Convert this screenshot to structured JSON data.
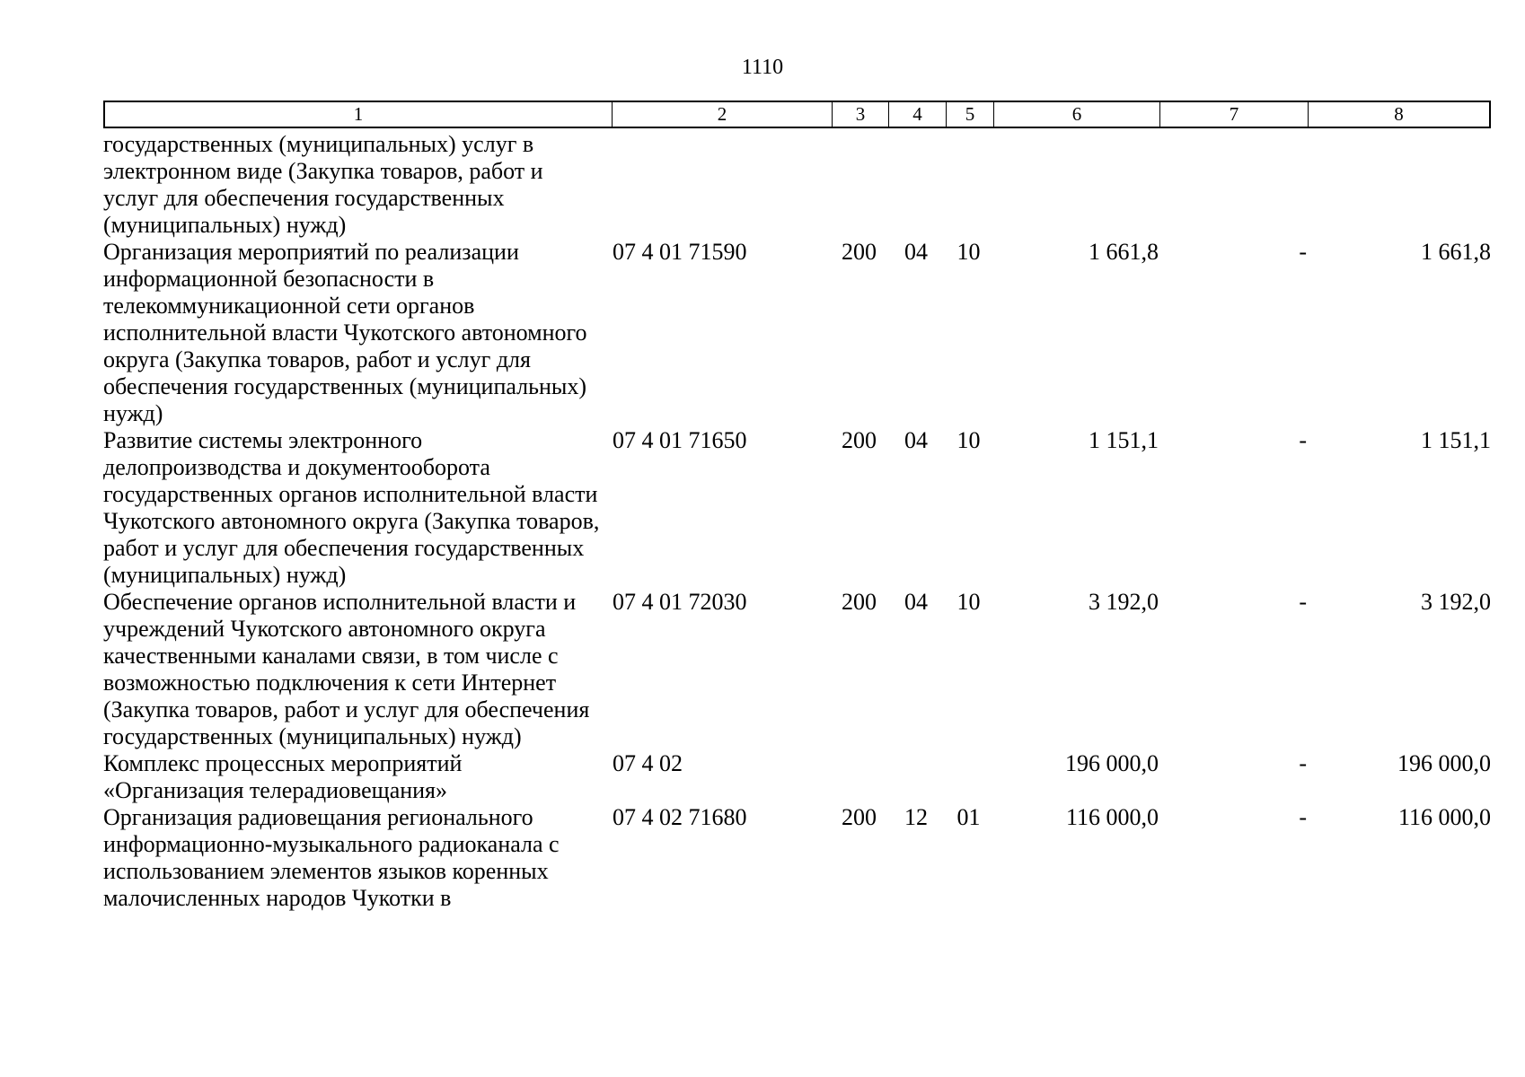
{
  "page": {
    "number": "1110"
  },
  "table": {
    "header_cols": [
      "1",
      "2",
      "3",
      "4",
      "5",
      "6",
      "7",
      "8"
    ],
    "rows": [
      {
        "name": "государственных (муниципальных) услуг в электронном виде (Закупка товаров, работ и услуг для обеспечения государственных (муниципальных) нужд)",
        "code": "",
        "c3": "",
        "c4": "",
        "c5": "",
        "c6": "",
        "c7": "",
        "c8": ""
      },
      {
        "name": "Организация мероприятий по реализации информационной безопасности в телекоммуникационной сети органов исполнительной власти Чукотского автономного округа (Закупка товаров, работ и услуг для обеспечения государственных (муниципальных) нужд)",
        "code": "07 4 01 71590",
        "c3": "200",
        "c4": "04",
        "c5": "10",
        "c6": "1 661,8",
        "c7": "-",
        "c8": "1 661,8"
      },
      {
        "name": "Развитие системы электронного делопроизводства и документооборота государственных органов исполнительной власти Чукотского автономного округа (Закупка товаров, работ и услуг для обеспечения государственных (муниципальных) нужд)",
        "code": "07 4 01 71650",
        "c3": "200",
        "c4": "04",
        "c5": "10",
        "c6": "1 151,1",
        "c7": "-",
        "c8": "1 151,1"
      },
      {
        "name": "Обеспечение органов исполнительной власти и учреждений Чукотского автономного округа качественными каналами связи, в том числе с возможностью подключения к сети Интернет (Закупка товаров, работ и услуг для обеспечения государственных (муниципальных) нужд)",
        "code": "07 4 01 72030",
        "c3": "200",
        "c4": "04",
        "c5": "10",
        "c6": "3 192,0",
        "c7": "-",
        "c8": "3 192,0"
      },
      {
        "name": "Комплекс процессных мероприятий «Организация телерадиовещания»",
        "code": "07 4 02",
        "c3": "",
        "c4": "",
        "c5": "",
        "c6": "196 000,0",
        "c7": "-",
        "c8": "196 000,0"
      },
      {
        "name": "Организация радиовещания регионального информационно-музыкального радиоканала с использованием элементов языков коренных малочисленных народов Чукотки в",
        "code": "07 4 02 71680",
        "c3": "200",
        "c4": "12",
        "c5": "01",
        "c6": "116 000,0",
        "c7": "-",
        "c8": "116 000,0"
      }
    ]
  }
}
